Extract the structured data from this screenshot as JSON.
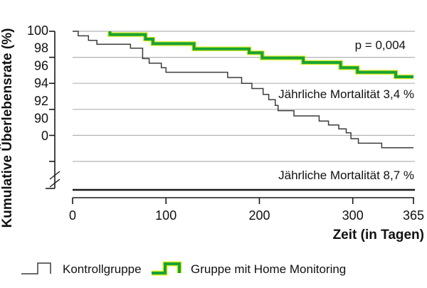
{
  "figure": {
    "background": "#ffffff"
  },
  "colors": {
    "gridline": "#b3b3b3",
    "axis": "#1a1a1a",
    "zero_line": "#1a1a1a",
    "control_line": "#3c3c3c",
    "home_monitoring_line": "#18a236",
    "home_monitoring_fringe": "#d9ed21",
    "text": "#111111"
  },
  "chart_data": {
    "type": "line",
    "step": true,
    "title": "",
    "xlabel": "Zeit (in Tagen)",
    "ylabel": "Kumulative Überlebensrate (%)",
    "x_range": [
      0,
      365
    ],
    "x_tick_days": [
      0,
      100,
      200,
      300,
      365
    ],
    "x_ticks": [
      "0",
      "100",
      "200",
      "300",
      "365"
    ],
    "y_ticks": [
      "100",
      "98",
      "96",
      "94",
      "92",
      "90",
      "0"
    ],
    "y_gridline_values": [
      100,
      98,
      96,
      94,
      92,
      90
    ],
    "y_axis_break": true,
    "grid": true,
    "legend_position": "bottom",
    "annotations": [
      {
        "id": "p-value",
        "text": "p = 0,004"
      },
      {
        "id": "mortality-home-monitoring",
        "text": "Jährliche Mortalität 3,4 %"
      },
      {
        "id": "mortality-control",
        "text": "Jährliche Mortalität 8,7 %"
      }
    ],
    "series": [
      {
        "name": "Kontrollgruppe",
        "color": "#3c3c3c",
        "stroke_width": 1.5,
        "points_day_pct": [
          [
            0,
            100
          ],
          [
            6,
            99.65
          ],
          [
            17,
            99.3
          ],
          [
            26,
            99.0
          ],
          [
            62,
            98.7
          ],
          [
            75,
            97.9
          ],
          [
            82,
            97.55
          ],
          [
            95,
            97.2
          ],
          [
            100,
            96.85
          ],
          [
            166,
            96.45
          ],
          [
            181,
            96.0
          ],
          [
            192,
            95.6
          ],
          [
            204,
            95.15
          ],
          [
            210,
            94.75
          ],
          [
            217,
            94.3
          ],
          [
            220,
            93.9
          ],
          [
            237,
            93.5
          ],
          [
            264,
            93.1
          ],
          [
            274,
            92.8
          ],
          [
            285,
            92.5
          ],
          [
            293,
            92.2
          ],
          [
            298,
            91.75
          ],
          [
            306,
            91.4
          ],
          [
            331,
            91.05
          ]
        ]
      },
      {
        "name": "Gruppe mit Home Monitoring",
        "color": "#18a236",
        "fringe_color": "#d9ed21",
        "stroke_width": 4,
        "points_day_pct": [
          [
            40,
            100
          ],
          [
            40,
            99.75
          ],
          [
            78,
            99.4
          ],
          [
            86,
            99.05
          ],
          [
            130,
            98.65
          ],
          [
            189,
            98.35
          ],
          [
            203,
            97.95
          ],
          [
            247,
            97.6
          ],
          [
            287,
            97.2
          ],
          [
            305,
            96.85
          ],
          [
            346,
            96.5
          ]
        ]
      }
    ]
  },
  "legend": {
    "items": [
      {
        "label": "Kontrollgruppe"
      },
      {
        "label": "Gruppe mit Home Monitoring"
      }
    ]
  }
}
